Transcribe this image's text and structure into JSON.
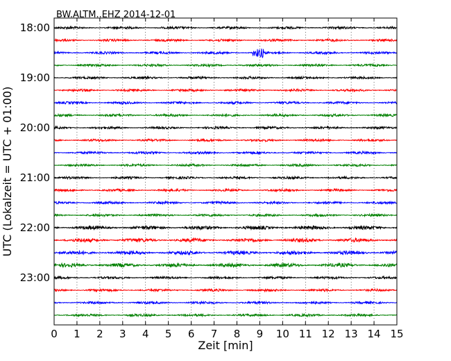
{
  "chart_data": {
    "type": "line",
    "title": "BW.ALTM..EHZ 2014-12-01",
    "xlabel": "Zeit  [min]",
    "ylabel": "UTC (Lokalzeit = UTC + 01:00)",
    "xlim": [
      0,
      15
    ],
    "x_ticks": [
      "0",
      "1",
      "2",
      "3",
      "4",
      "5",
      "6",
      "7",
      "8",
      "9",
      "10",
      "11",
      "12",
      "13",
      "14",
      "15"
    ],
    "y_ticks": [
      "18:00",
      "19:00",
      "20:00",
      "21:00",
      "22:00",
      "23:00"
    ],
    "grid": "vertical dotted",
    "colors": [
      "#000000",
      "#ff0000",
      "#0000ff",
      "#008000"
    ],
    "traces": [
      {
        "start": "18:00",
        "color": "#000000"
      },
      {
        "start": "18:15",
        "color": "#ff0000"
      },
      {
        "start": "18:30",
        "color": "#0000ff"
      },
      {
        "start": "18:45",
        "color": "#008000"
      },
      {
        "start": "19:00",
        "color": "#000000"
      },
      {
        "start": "19:15",
        "color": "#ff0000"
      },
      {
        "start": "19:30",
        "color": "#0000ff"
      },
      {
        "start": "19:45",
        "color": "#008000"
      },
      {
        "start": "20:00",
        "color": "#000000"
      },
      {
        "start": "20:15",
        "color": "#ff0000"
      },
      {
        "start": "20:30",
        "color": "#0000ff"
      },
      {
        "start": "20:45",
        "color": "#008000"
      },
      {
        "start": "21:00",
        "color": "#000000"
      },
      {
        "start": "21:15",
        "color": "#ff0000"
      },
      {
        "start": "21:30",
        "color": "#0000ff"
      },
      {
        "start": "21:45",
        "color": "#008000"
      },
      {
        "start": "22:00",
        "color": "#000000"
      },
      {
        "start": "22:15",
        "color": "#ff0000"
      },
      {
        "start": "22:30",
        "color": "#0000ff"
      },
      {
        "start": "22:45",
        "color": "#008000"
      },
      {
        "start": "23:00",
        "color": "#000000"
      },
      {
        "start": "23:15",
        "color": "#ff0000"
      },
      {
        "start": "23:30",
        "color": "#0000ff"
      },
      {
        "start": "23:45",
        "color": "#008000"
      }
    ]
  }
}
